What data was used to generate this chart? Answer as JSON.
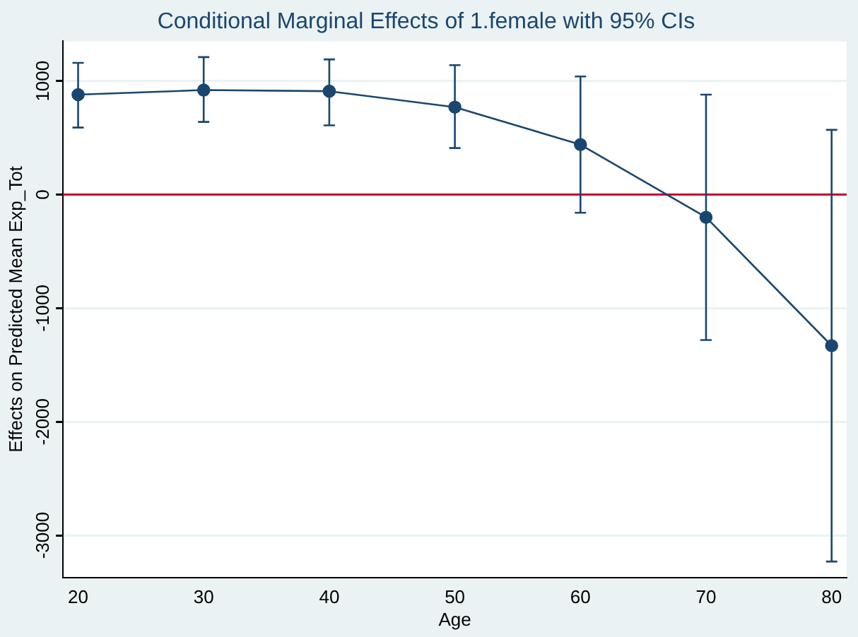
{
  "chart_data": {
    "type": "line",
    "title": "Conditional Marginal Effects of 1.female with 95% CIs",
    "xlabel": "Age",
    "ylabel": "Effects on Predicted Mean Exp_Tot",
    "x": [
      20,
      30,
      40,
      50,
      60,
      70,
      80
    ],
    "series": [
      {
        "color": "#1a476f",
        "values": [
          880,
          920,
          910,
          770,
          440,
          -200,
          -1330
        ],
        "errors": [
          [
            590,
            1160
          ],
          [
            640,
            1210
          ],
          [
            610,
            1190
          ],
          [
            410,
            1140
          ],
          [
            -160,
            1040
          ],
          [
            -1280,
            880
          ],
          [
            -3230,
            570
          ]
        ]
      }
    ],
    "xlim": [
      18.8,
      81.2
    ],
    "xticks": [
      20,
      30,
      40,
      50,
      60,
      70,
      80
    ],
    "ylim": [
      -3370,
      1350
    ],
    "yticks": [
      -3000,
      -2000,
      -1000,
      0,
      1000
    ],
    "ref_lines": [
      {
        "axis": "y",
        "value": 0,
        "color": "#c10534"
      }
    ],
    "grid": "y",
    "legend": false,
    "marker": "circle",
    "line_style": "solid"
  }
}
